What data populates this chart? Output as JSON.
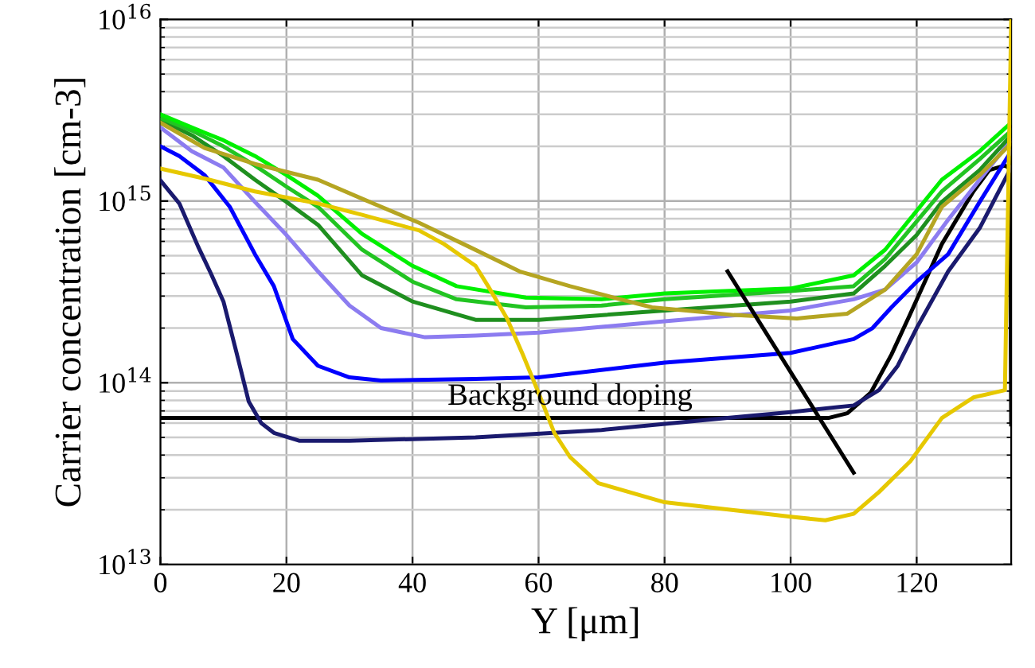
{
  "chart_data": {
    "type": "line",
    "xlabel": "Y [μm]",
    "ylabel": "Carrier concentration [cm-3]",
    "log": "y",
    "grid": true,
    "line_style": "solid",
    "xlim": [
      0,
      135
    ],
    "xticks": [
      0,
      20,
      40,
      60,
      80,
      100,
      120
    ],
    "ylim": [
      10000000000000.0,
      1e+16
    ],
    "yticks": [
      {
        "value": 10000000000000.0,
        "label": "10$^{13}$"
      },
      {
        "value": 100000000000000.0,
        "label": "10$^{14}$"
      },
      {
        "value": 1000000000000000.0,
        "label": "10$^{15}$"
      },
      {
        "value": 1e+16,
        "label": "10$^{16}$"
      }
    ],
    "annotations": [
      {
        "text": "Background doping",
        "x": 65,
        "y": 64000000000000.0
      }
    ],
    "series": [
      {
        "color": "#000000",
        "x": [
          0,
          50,
          100,
          106,
          109,
          112.7,
          116,
          119,
          124,
          129,
          131.5,
          134,
          134.8,
          135
        ],
        "values": [
          64000000000000.0,
          64000000000000.0,
          64000000000000.0,
          64000000000000.0,
          68000000000000.0,
          88000000000000.0,
          143000000000000.0,
          240000000000000.0,
          580000000000000.0,
          1130000000000000.0,
          1480000000000000.0,
          1570000000000000.0,
          1510000000000000.0,
          59000000000000.0
        ]
      },
      {
        "color": "#1a1a6e",
        "x": [
          0,
          3,
          6,
          8,
          10,
          12,
          14,
          16,
          18,
          22,
          30,
          50,
          70,
          90,
          100,
          110,
          114,
          117,
          120,
          125,
          130,
          135
        ],
        "values": [
          1300000000000000.0,
          970000000000000.0,
          560000000000000.0,
          400000000000000.0,
          280000000000000.0,
          150000000000000.0,
          79000000000000.0,
          60000000000000.0,
          53000000000000.0,
          48000000000000.0,
          48000000000000.0,
          50000000000000.0,
          55000000000000.0,
          64000000000000.0,
          69000000000000.0,
          75000000000000.0,
          91000000000000.0,
          124000000000000.0,
          200000000000000.0,
          410000000000000.0,
          710000000000000.0,
          1530000000000000.0
        ]
      },
      {
        "color": "#0000ff",
        "x": [
          0,
          3,
          7,
          11,
          15,
          18,
          21,
          25,
          30,
          35,
          50,
          60,
          80,
          100,
          110,
          113,
          116,
          120,
          125,
          130,
          135
        ],
        "values": [
          2000000000000000.0,
          1770000000000000.0,
          1390000000000000.0,
          930000000000000.0,
          510000000000000.0,
          340000000000000.0,
          174000000000000.0,
          124000000000000.0,
          107000000000000.0,
          103000000000000.0,
          105000000000000.0,
          107000000000000.0,
          129000000000000.0,
          146000000000000.0,
          174000000000000.0,
          200000000000000.0,
          260000000000000.0,
          360000000000000.0,
          510000000000000.0,
          990000000000000.0,
          1880000000000000.0
        ]
      },
      {
        "color": "#8c7cf0",
        "x": [
          0,
          5,
          10,
          15,
          20,
          25,
          30,
          35,
          42,
          50,
          60,
          80,
          100,
          110,
          115,
          120,
          125,
          130,
          135
        ],
        "values": [
          2540000000000000.0,
          1880000000000000.0,
          1530000000000000.0,
          990000000000000.0,
          650000000000000.0,
          410000000000000.0,
          266000000000000.0,
          200000000000000.0,
          178000000000000.0,
          182000000000000.0,
          189000000000000.0,
          218000000000000.0,
          250000000000000.0,
          288000000000000.0,
          326000000000000.0,
          460000000000000.0,
          790000000000000.0,
          1310000000000000.0,
          2160000000000000.0
        ]
      },
      {
        "color": "#1f8f1f",
        "x": [
          0,
          5,
          10,
          15,
          20,
          25,
          32,
          40,
          50,
          60,
          80,
          100,
          110,
          115,
          120,
          124,
          130,
          135
        ],
        "values": [
          2800000000000000.0,
          2300000000000000.0,
          1770000000000000.0,
          1310000000000000.0,
          990000000000000.0,
          740000000000000.0,
          390000000000000.0,
          280000000000000.0,
          222000000000000.0,
          222000000000000.0,
          250000000000000.0,
          280000000000000.0,
          310000000000000.0,
          440000000000000.0,
          650000000000000.0,
          990000000000000.0,
          1480000000000000.0,
          2300000000000000.0
        ]
      },
      {
        "color": "#22c422",
        "x": [
          0,
          5,
          10,
          15,
          20,
          25,
          32,
          40,
          47,
          58,
          70,
          80,
          100,
          110,
          115,
          124,
          130,
          135
        ],
        "values": [
          2870000000000000.0,
          2440000000000000.0,
          2000000000000000.0,
          1570000000000000.0,
          1200000000000000.0,
          930000000000000.0,
          540000000000000.0,
          360000000000000.0,
          288000000000000.0,
          260000000000000.0,
          266000000000000.0,
          288000000000000.0,
          320000000000000.0,
          340000000000000.0,
          480000000000000.0,
          1130000000000000.0,
          1700000000000000.0,
          2440000000000000.0
        ]
      },
      {
        "color": "#00f000",
        "x": [
          0,
          5,
          10,
          15,
          20,
          25,
          32,
          40,
          47,
          58,
          70,
          80,
          100,
          110,
          115,
          124,
          130,
          135
        ],
        "values": [
          3000000000000000.0,
          2540000000000000.0,
          2160000000000000.0,
          1770000000000000.0,
          1390000000000000.0,
          1070000000000000.0,
          660000000000000.0,
          440000000000000.0,
          340000000000000.0,
          294000000000000.0,
          288000000000000.0,
          310000000000000.0,
          330000000000000.0,
          390000000000000.0,
          540000000000000.0,
          1310000000000000.0,
          1880000000000000.0,
          2700000000000000.0
        ]
      },
      {
        "color": "#b5a522",
        "x": [
          0,
          7,
          15,
          25,
          32,
          41,
          49,
          57,
          65,
          72,
          78,
          91,
          101,
          109,
          115,
          120,
          124,
          130,
          135
        ],
        "values": [
          2700000000000000.0,
          1960000000000000.0,
          1600000000000000.0,
          1310000000000000.0,
          1030000000000000.0,
          760000000000000.0,
          560000000000000.0,
          410000000000000.0,
          340000000000000.0,
          294000000000000.0,
          260000000000000.0,
          236000000000000.0,
          226000000000000.0,
          240000000000000.0,
          326000000000000.0,
          510000000000000.0,
          930000000000000.0,
          1390000000000000.0,
          2080000000000000.0
        ]
      },
      {
        "color": "#e6c800",
        "x": [
          0,
          7,
          15,
          25,
          32,
          41,
          45,
          50,
          52,
          55,
          57.5,
          60,
          62.5,
          65,
          69.5,
          80,
          100,
          105.5,
          110,
          114,
          119,
          124,
          129,
          134,
          135
        ],
        "values": [
          1510000000000000.0,
          1330000000000000.0,
          1130000000000000.0,
          970000000000000.0,
          840000000000000.0,
          690000000000000.0,
          580000000000000.0,
          440000000000000.0,
          340000000000000.0,
          226000000000000.0,
          143000000000000.0,
          88000000000000.0,
          53000000000000.0,
          39000000000000.0,
          28000000000000.0,
          22000000000000.0,
          18300000000000.0,
          17500000000000.0,
          19000000000000.0,
          25000000000000.0,
          37000000000000.0,
          64000000000000.0,
          83000000000000.0,
          91000000000000.0,
          1e+16
        ]
      },
      {
        "color": "#000000",
        "x": [
          90,
          110
        ],
        "values": [
          410000000000000.0,
          32000000000000.0
        ]
      }
    ]
  }
}
